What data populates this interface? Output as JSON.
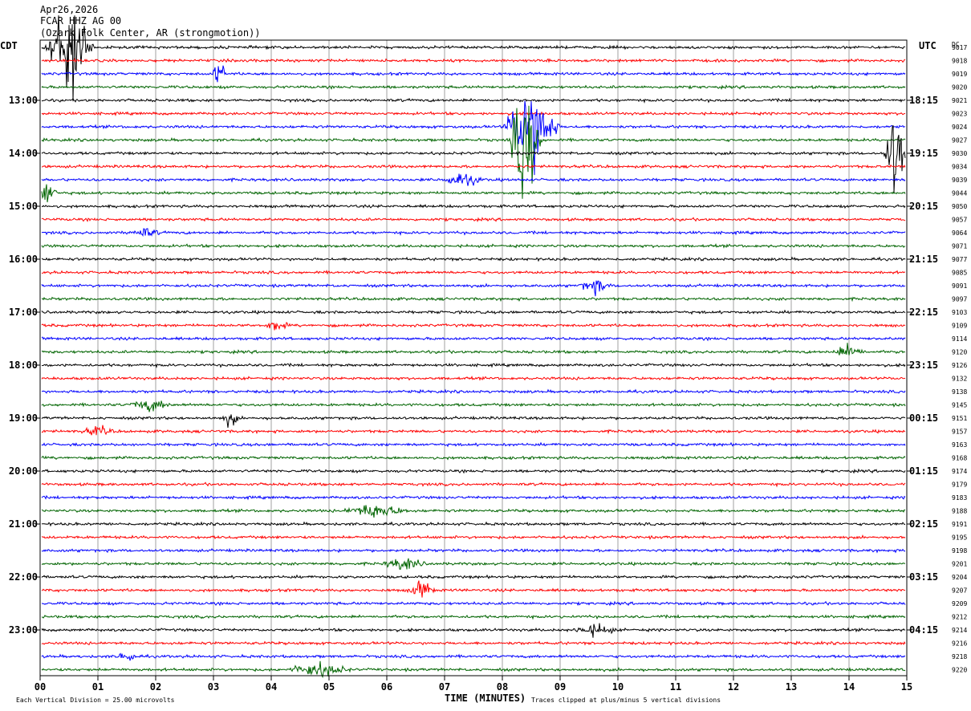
{
  "header": {
    "date": "Apr26,2026",
    "station": "FCAR HHZ AG 00",
    "location": "(Ozark Folk Center, AR (strongmotion))"
  },
  "chart_data": {
    "type": "helicorder",
    "left_zone_label": "CDT",
    "right_zone_label": "UTC",
    "dc_label": "DC",
    "x_axis": {
      "label": "TIME (MINUTES)",
      "range": [
        0,
        15
      ],
      "ticks": [
        "00",
        "01",
        "02",
        "03",
        "04",
        "05",
        "06",
        "07",
        "08",
        "09",
        "10",
        "11",
        "12",
        "13",
        "14",
        "15"
      ]
    },
    "left_hour_labels": [
      "13:00",
      "14:00",
      "15:00",
      "16:00",
      "17:00",
      "18:00",
      "19:00",
      "20:00",
      "21:00",
      "22:00",
      "23:00"
    ],
    "right_hour_labels": [
      "18:15",
      "19:15",
      "20:15",
      "21:15",
      "22:15",
      "23:15",
      "00:15",
      "01:15",
      "02:15",
      "03:15",
      "04:15"
    ],
    "hour_label_first_row": 4,
    "rows_per_hour": 4,
    "trace_colors": [
      "#000000",
      "#ff0000",
      "#0000ff",
      "#006400"
    ],
    "dc_offsets": [
      "9017",
      "9018",
      "9019",
      "9020",
      "9021",
      "9023",
      "9024",
      "9027",
      "9030",
      "9034",
      "9039",
      "9044",
      "9050",
      "9057",
      "9064",
      "9071",
      "9077",
      "9085",
      "9091",
      "9097",
      "9103",
      "9109",
      "9114",
      "9120",
      "9126",
      "9132",
      "9138",
      "9145",
      "9151",
      "9157",
      "9163",
      "9168",
      "9174",
      "9179",
      "9183",
      "9188",
      "9191",
      "9195",
      "9198",
      "9201",
      "9204",
      "9207",
      "9209",
      "9212",
      "9214",
      "9216",
      "9218",
      "9220"
    ],
    "events": [
      {
        "row": 0,
        "minute": 0.5,
        "width": 0.9,
        "amplitude": 10
      },
      {
        "row": 2,
        "minute": 3.1,
        "width": 0.3,
        "amplitude": 2
      },
      {
        "row": 6,
        "minute": 8.5,
        "width": 1.0,
        "amplitude": 8
      },
      {
        "row": 7,
        "minute": 8.4,
        "width": 0.6,
        "amplitude": 11
      },
      {
        "row": 8,
        "minute": 14.8,
        "width": 0.4,
        "amplitude": 9
      },
      {
        "row": 10,
        "minute": 7.3,
        "width": 0.8,
        "amplitude": 1.2
      },
      {
        "row": 11,
        "minute": 0.1,
        "width": 0.4,
        "amplitude": 2.5
      },
      {
        "row": 14,
        "minute": 1.8,
        "width": 0.6,
        "amplitude": 0.8
      },
      {
        "row": 18,
        "minute": 9.6,
        "width": 0.6,
        "amplitude": 1.2
      },
      {
        "row": 21,
        "minute": 4.1,
        "width": 0.4,
        "amplitude": 1.2
      },
      {
        "row": 23,
        "minute": 14.0,
        "width": 0.6,
        "amplitude": 1.2
      },
      {
        "row": 27,
        "minute": 1.9,
        "width": 0.8,
        "amplitude": 1.0
      },
      {
        "row": 28,
        "minute": 3.3,
        "width": 0.3,
        "amplitude": 1.5
      },
      {
        "row": 29,
        "minute": 1.0,
        "width": 0.6,
        "amplitude": 0.8
      },
      {
        "row": 35,
        "minute": 5.8,
        "width": 1.2,
        "amplitude": 1.2
      },
      {
        "row": 39,
        "minute": 6.3,
        "width": 0.8,
        "amplitude": 1.0
      },
      {
        "row": 41,
        "minute": 6.6,
        "width": 0.5,
        "amplitude": 1.5
      },
      {
        "row": 44,
        "minute": 9.6,
        "width": 0.8,
        "amplitude": 1.0
      },
      {
        "row": 46,
        "minute": 1.5,
        "width": 0.4,
        "amplitude": 1.0
      },
      {
        "row": 47,
        "minute": 4.8,
        "width": 1.2,
        "amplitude": 1.2
      }
    ],
    "footer_left": "Each Vertical Division =   25.00 microvolts",
    "footer_right": "Traces clipped at plus/minus 5 vertical divisions"
  }
}
